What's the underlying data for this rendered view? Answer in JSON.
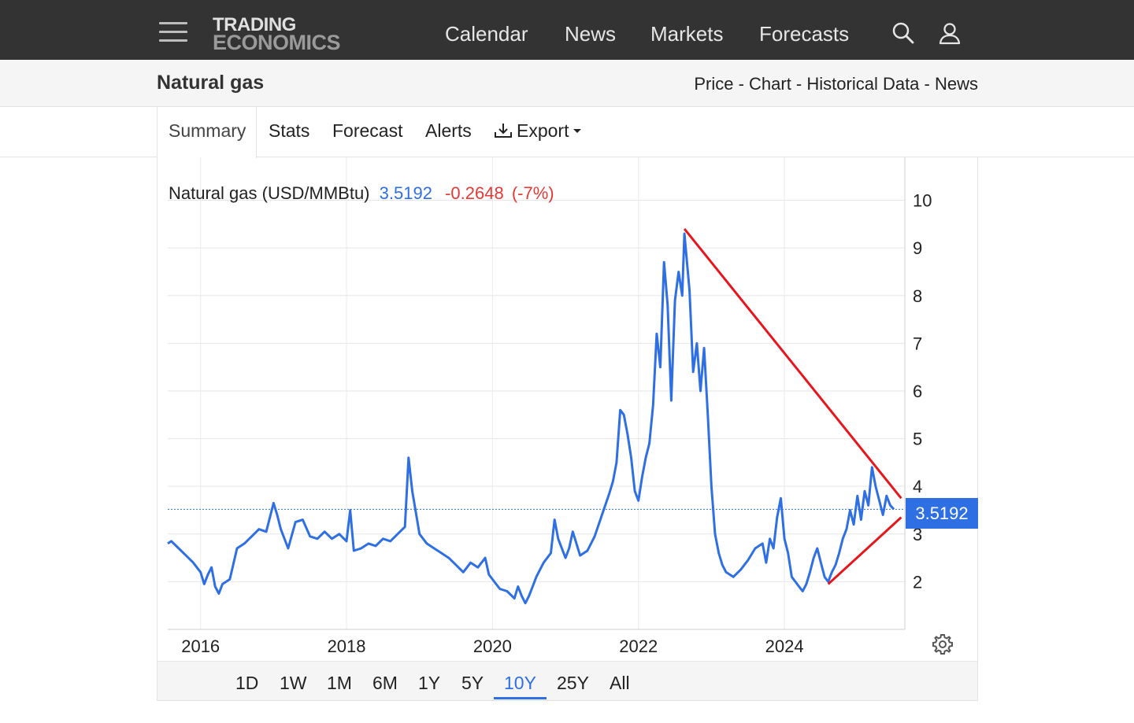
{
  "nav": {
    "logo_line1": "TRADING",
    "logo_line2": "ECONOMICS",
    "links": [
      "Calendar",
      "News",
      "Markets",
      "Forecasts"
    ],
    "icons": [
      "menu-icon",
      "search-icon",
      "user-icon"
    ]
  },
  "title_bar": {
    "title": "Natural gas",
    "links": [
      "Price",
      "Chart",
      "Historical Data",
      "News"
    ],
    "separator": " - "
  },
  "tabs": {
    "items": [
      "Summary",
      "Stats",
      "Forecast",
      "Alerts",
      "Export"
    ],
    "active": "Summary"
  },
  "quote": {
    "name": "Natural gas (USD/MMBtu)",
    "price": "3.5192",
    "change": "-0.2648",
    "change_pct": "(-7%)"
  },
  "last_value_badge": "3.5192",
  "range_buttons": [
    "1D",
    "1W",
    "1M",
    "6M",
    "1Y",
    "5Y",
    "10Y",
    "25Y",
    "All"
  ],
  "active_range": "10Y",
  "colors": {
    "price_line": "#2f6fe4",
    "trend_lines": "#e8151b",
    "change_negative": "#e53935",
    "nav_bg": "#333333"
  },
  "chart_data": {
    "type": "line",
    "y_axis_position": "right",
    "ylim": [
      1.0,
      10.9
    ],
    "y_ticks": [
      2,
      3,
      4,
      5,
      6,
      7,
      8,
      9,
      10
    ],
    "xlim": [
      2015.55,
      2025.65
    ],
    "x_ticks": [
      2016,
      2018,
      2020,
      2022,
      2024
    ],
    "grid": true,
    "last_value_line": 3.5192,
    "series": [
      {
        "points": [
          [
            2015.55,
            2.8
          ],
          [
            2015.6,
            2.85
          ],
          [
            2015.7,
            2.7
          ],
          [
            2015.8,
            2.55
          ],
          [
            2015.9,
            2.4
          ],
          [
            2016.0,
            2.2
          ],
          [
            2016.05,
            1.95
          ],
          [
            2016.1,
            2.15
          ],
          [
            2016.15,
            2.3
          ],
          [
            2016.2,
            1.9
          ],
          [
            2016.25,
            1.75
          ],
          [
            2016.3,
            1.95
          ],
          [
            2016.4,
            2.05
          ],
          [
            2016.5,
            2.7
          ],
          [
            2016.6,
            2.8
          ],
          [
            2016.7,
            2.95
          ],
          [
            2016.8,
            3.1
          ],
          [
            2016.9,
            3.05
          ],
          [
            2017.0,
            3.65
          ],
          [
            2017.05,
            3.4
          ],
          [
            2017.1,
            3.1
          ],
          [
            2017.2,
            2.7
          ],
          [
            2017.3,
            3.25
          ],
          [
            2017.4,
            3.3
          ],
          [
            2017.5,
            2.95
          ],
          [
            2017.6,
            2.9
          ],
          [
            2017.7,
            3.05
          ],
          [
            2017.8,
            2.9
          ],
          [
            2017.9,
            3.0
          ],
          [
            2018.0,
            2.85
          ],
          [
            2018.05,
            3.5
          ],
          [
            2018.1,
            2.65
          ],
          [
            2018.2,
            2.7
          ],
          [
            2018.3,
            2.8
          ],
          [
            2018.4,
            2.75
          ],
          [
            2018.5,
            2.9
          ],
          [
            2018.6,
            2.85
          ],
          [
            2018.7,
            3.0
          ],
          [
            2018.8,
            3.15
          ],
          [
            2018.85,
            4.6
          ],
          [
            2018.9,
            3.9
          ],
          [
            2019.0,
            3.0
          ],
          [
            2019.1,
            2.8
          ],
          [
            2019.2,
            2.7
          ],
          [
            2019.3,
            2.6
          ],
          [
            2019.4,
            2.5
          ],
          [
            2019.5,
            2.35
          ],
          [
            2019.6,
            2.2
          ],
          [
            2019.7,
            2.4
          ],
          [
            2019.8,
            2.3
          ],
          [
            2019.9,
            2.5
          ],
          [
            2019.95,
            2.15
          ],
          [
            2020.0,
            2.05
          ],
          [
            2020.1,
            1.85
          ],
          [
            2020.2,
            1.8
          ],
          [
            2020.3,
            1.65
          ],
          [
            2020.35,
            1.9
          ],
          [
            2020.4,
            1.7
          ],
          [
            2020.45,
            1.55
          ],
          [
            2020.5,
            1.7
          ],
          [
            2020.55,
            1.9
          ],
          [
            2020.6,
            2.1
          ],
          [
            2020.7,
            2.4
          ],
          [
            2020.8,
            2.6
          ],
          [
            2020.85,
            3.3
          ],
          [
            2020.9,
            2.9
          ],
          [
            2021.0,
            2.5
          ],
          [
            2021.05,
            2.7
          ],
          [
            2021.1,
            3.05
          ],
          [
            2021.15,
            2.8
          ],
          [
            2021.2,
            2.55
          ],
          [
            2021.3,
            2.65
          ],
          [
            2021.4,
            2.95
          ],
          [
            2021.5,
            3.4
          ],
          [
            2021.6,
            3.85
          ],
          [
            2021.65,
            4.1
          ],
          [
            2021.7,
            4.5
          ],
          [
            2021.75,
            5.6
          ],
          [
            2021.8,
            5.5
          ],
          [
            2021.85,
            5.1
          ],
          [
            2021.9,
            4.6
          ],
          [
            2021.95,
            3.9
          ],
          [
            2022.0,
            3.7
          ],
          [
            2022.05,
            4.2
          ],
          [
            2022.1,
            4.6
          ],
          [
            2022.15,
            4.9
          ],
          [
            2022.2,
            5.7
          ],
          [
            2022.25,
            7.2
          ],
          [
            2022.3,
            6.5
          ],
          [
            2022.35,
            8.7
          ],
          [
            2022.4,
            7.8
          ],
          [
            2022.45,
            5.8
          ],
          [
            2022.5,
            7.9
          ],
          [
            2022.55,
            8.5
          ],
          [
            2022.6,
            8.0
          ],
          [
            2022.63,
            9.3
          ],
          [
            2022.7,
            8.1
          ],
          [
            2022.75,
            6.4
          ],
          [
            2022.8,
            7.0
          ],
          [
            2022.85,
            6.0
          ],
          [
            2022.9,
            6.9
          ],
          [
            2022.95,
            5.5
          ],
          [
            2023.0,
            4.0
          ],
          [
            2023.05,
            3.0
          ],
          [
            2023.1,
            2.6
          ],
          [
            2023.15,
            2.35
          ],
          [
            2023.2,
            2.2
          ],
          [
            2023.3,
            2.1
          ],
          [
            2023.4,
            2.25
          ],
          [
            2023.5,
            2.45
          ],
          [
            2023.6,
            2.7
          ],
          [
            2023.7,
            2.8
          ],
          [
            2023.75,
            2.4
          ],
          [
            2023.8,
            2.9
          ],
          [
            2023.85,
            2.7
          ],
          [
            2023.9,
            3.35
          ],
          [
            2023.95,
            3.75
          ],
          [
            2024.0,
            2.9
          ],
          [
            2024.05,
            2.6
          ],
          [
            2024.1,
            2.1
          ],
          [
            2024.15,
            2.0
          ],
          [
            2024.2,
            1.9
          ],
          [
            2024.25,
            1.8
          ],
          [
            2024.3,
            1.95
          ],
          [
            2024.35,
            2.2
          ],
          [
            2024.4,
            2.5
          ],
          [
            2024.45,
            2.7
          ],
          [
            2024.5,
            2.4
          ],
          [
            2024.55,
            2.1
          ],
          [
            2024.6,
            2.0
          ],
          [
            2024.65,
            2.2
          ],
          [
            2024.7,
            2.35
          ],
          [
            2024.75,
            2.6
          ],
          [
            2024.8,
            2.9
          ],
          [
            2024.85,
            3.1
          ],
          [
            2024.9,
            3.5
          ],
          [
            2024.95,
            3.2
          ],
          [
            2025.0,
            3.8
          ],
          [
            2025.05,
            3.3
          ],
          [
            2025.1,
            3.9
          ],
          [
            2025.15,
            3.6
          ],
          [
            2025.2,
            4.4
          ],
          [
            2025.25,
            4.0
          ],
          [
            2025.3,
            3.7
          ],
          [
            2025.35,
            3.4
          ],
          [
            2025.4,
            3.8
          ],
          [
            2025.45,
            3.6
          ],
          [
            2025.5,
            3.52
          ]
        ]
      }
    ],
    "trend_lines": [
      {
        "from": [
          2022.63,
          9.4
        ],
        "to": [
          2025.6,
          3.75
        ]
      },
      {
        "from": [
          2024.6,
          1.95
        ],
        "to": [
          2025.6,
          3.35
        ]
      }
    ]
  }
}
